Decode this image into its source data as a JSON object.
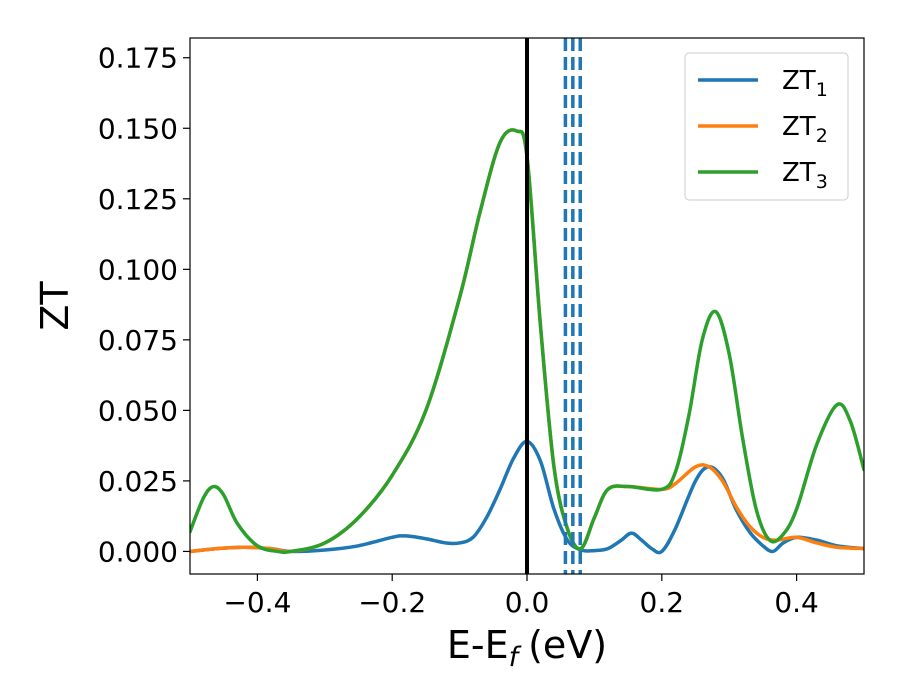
{
  "chart_data": {
    "type": "line",
    "title": "",
    "xlabel": "E-E",
    "xlabel_subscript": "f",
    "xlabel_unit": "(eV)",
    "ylabel": "ZT",
    "xlim": [
      -0.5,
      0.5
    ],
    "ylim": [
      -0.008,
      0.182
    ],
    "grid": false,
    "legend_position": "top-right",
    "x_ticks": [
      -0.4,
      -0.2,
      0.0,
      0.2,
      0.4
    ],
    "x_tick_labels": [
      "−0.4",
      "−0.2",
      "0.0",
      "0.2",
      "0.4"
    ],
    "y_ticks": [
      0.0,
      0.025,
      0.05,
      0.075,
      0.1,
      0.125,
      0.15,
      0.175
    ],
    "y_tick_labels": [
      "0.000",
      "0.025",
      "0.050",
      "0.075",
      "0.100",
      "0.125",
      "0.150",
      "0.175"
    ],
    "vertical_lines": [
      {
        "x": 0.0,
        "style": "solid",
        "color": "#000000"
      },
      {
        "x": 0.057,
        "style": "dashed",
        "color": "#1f77b4"
      },
      {
        "x": 0.068,
        "style": "dashed",
        "color": "#1f77b4"
      },
      {
        "x": 0.079,
        "style": "dashed",
        "color": "#1f77b4"
      }
    ],
    "series": [
      {
        "name": "ZT",
        "name_subscript": "1",
        "color": "#1f77b4",
        "x": [
          -0.5,
          -0.46,
          -0.42,
          -0.38,
          -0.35,
          -0.3,
          -0.25,
          -0.2,
          -0.18,
          -0.15,
          -0.12,
          -0.1,
          -0.08,
          -0.06,
          -0.04,
          -0.02,
          0.0,
          0.02,
          0.04,
          0.06,
          0.08,
          0.1,
          0.12,
          0.14,
          0.155,
          0.17,
          0.185,
          0.2,
          0.22,
          0.25,
          0.27,
          0.29,
          0.31,
          0.33,
          0.35,
          0.365,
          0.38,
          0.4,
          0.43,
          0.46,
          0.5
        ],
        "y": [
          0.0,
          0.001,
          0.0015,
          0.001,
          0.0,
          0.0005,
          0.002,
          0.005,
          0.0055,
          0.0045,
          0.003,
          0.003,
          0.005,
          0.012,
          0.022,
          0.033,
          0.039,
          0.032,
          0.015,
          0.004,
          0.0005,
          0.0003,
          0.001,
          0.004,
          0.0065,
          0.004,
          0.001,
          0.0,
          0.008,
          0.025,
          0.03,
          0.026,
          0.015,
          0.007,
          0.002,
          0.0,
          0.003,
          0.005,
          0.004,
          0.002,
          0.001
        ]
      },
      {
        "name": "ZT",
        "name_subscript": "2",
        "color": "#ff7f0e",
        "x": [
          -0.5,
          -0.46,
          -0.42,
          -0.38,
          -0.35,
          -0.3,
          -0.25,
          -0.2,
          -0.15,
          -0.1,
          -0.07,
          -0.04,
          -0.015,
          0.0,
          0.02,
          0.04,
          0.06,
          0.08,
          0.1,
          0.12,
          0.15,
          0.2,
          0.22,
          0.25,
          0.27,
          0.29,
          0.31,
          0.33,
          0.35,
          0.37,
          0.4,
          0.43,
          0.46,
          0.5
        ],
        "y": [
          0.0,
          0.001,
          0.0015,
          0.001,
          0.0,
          0.003,
          0.012,
          0.027,
          0.05,
          0.09,
          0.12,
          0.145,
          0.149,
          0.14,
          0.08,
          0.03,
          0.008,
          0.001,
          0.012,
          0.022,
          0.023,
          0.022,
          0.024,
          0.03,
          0.03,
          0.025,
          0.016,
          0.009,
          0.005,
          0.004,
          0.005,
          0.003,
          0.0015,
          0.001
        ]
      },
      {
        "name": "ZT",
        "name_subscript": "3",
        "color": "#2ca02c",
        "x": [
          -0.5,
          -0.48,
          -0.465,
          -0.45,
          -0.43,
          -0.4,
          -0.37,
          -0.35,
          -0.3,
          -0.25,
          -0.2,
          -0.15,
          -0.1,
          -0.07,
          -0.04,
          -0.015,
          0.0,
          0.02,
          0.04,
          0.06,
          0.08,
          0.1,
          0.12,
          0.15,
          0.2,
          0.22,
          0.24,
          0.26,
          0.28,
          0.3,
          0.32,
          0.34,
          0.36,
          0.38,
          0.4,
          0.43,
          0.46,
          0.48,
          0.5
        ],
        "y": [
          0.007,
          0.019,
          0.023,
          0.02,
          0.01,
          0.002,
          0.0,
          0.0,
          0.003,
          0.012,
          0.027,
          0.05,
          0.09,
          0.12,
          0.145,
          0.149,
          0.14,
          0.08,
          0.03,
          0.008,
          0.001,
          0.012,
          0.022,
          0.023,
          0.022,
          0.028,
          0.048,
          0.075,
          0.085,
          0.07,
          0.04,
          0.015,
          0.004,
          0.006,
          0.015,
          0.038,
          0.052,
          0.046,
          0.029
        ]
      }
    ]
  }
}
